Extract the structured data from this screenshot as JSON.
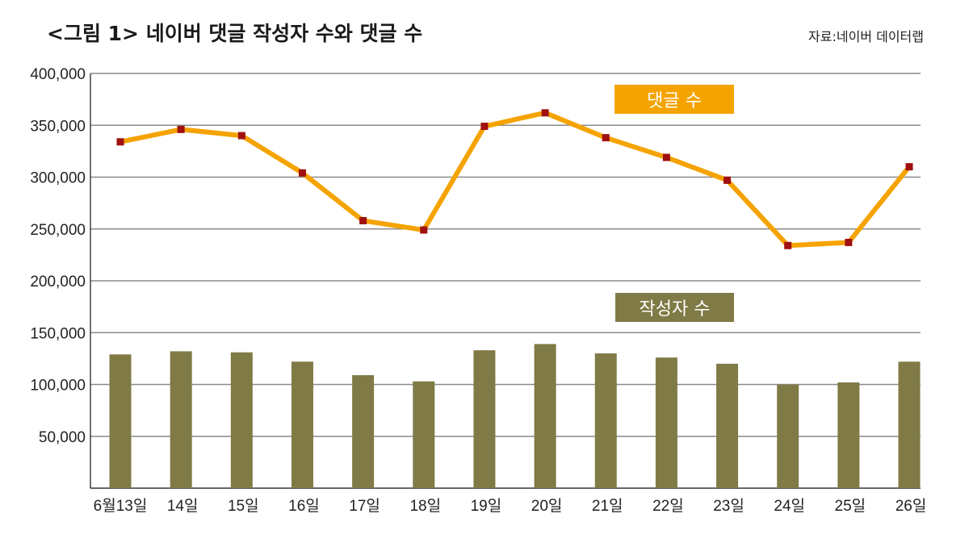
{
  "header": {
    "title": "<그림 1> 네이버 댓글 작성자 수와 댓글 수",
    "source": "자료:네이버 데이터랩"
  },
  "chart_data": {
    "type": "bar+line",
    "categories": [
      "6월13일",
      "14일",
      "15일",
      "16일",
      "17일",
      "18일",
      "19일",
      "20일",
      "21일",
      "22일",
      "23일",
      "24일",
      "25일",
      "26일"
    ],
    "y_ticks": [
      "400,000",
      "350,000",
      "300,000",
      "250,000",
      "200,000",
      "150,000",
      "100,000",
      "50,000"
    ],
    "ylim": [
      0,
      400000
    ],
    "grid": true,
    "series": [
      {
        "name": "댓글 수",
        "type": "line",
        "color": "#f5a300",
        "marker_color": "#a01010",
        "values": [
          334000,
          346000,
          340000,
          304000,
          258000,
          249000,
          349000,
          362000,
          338000,
          319000,
          297000,
          234000,
          237000,
          310000
        ]
      },
      {
        "name": "작성자 수",
        "type": "bar",
        "color": "#807a46",
        "values": [
          129000,
          132000,
          131000,
          122000,
          109000,
          103000,
          133000,
          139000,
          130000,
          126000,
          120000,
          100000,
          102000,
          122000
        ]
      }
    ],
    "legend": [
      {
        "label": "댓글 수",
        "color": "#f5a300",
        "placement": "upper-center"
      },
      {
        "label": "작성자 수",
        "color": "#807a46",
        "placement": "middle-center"
      }
    ]
  }
}
